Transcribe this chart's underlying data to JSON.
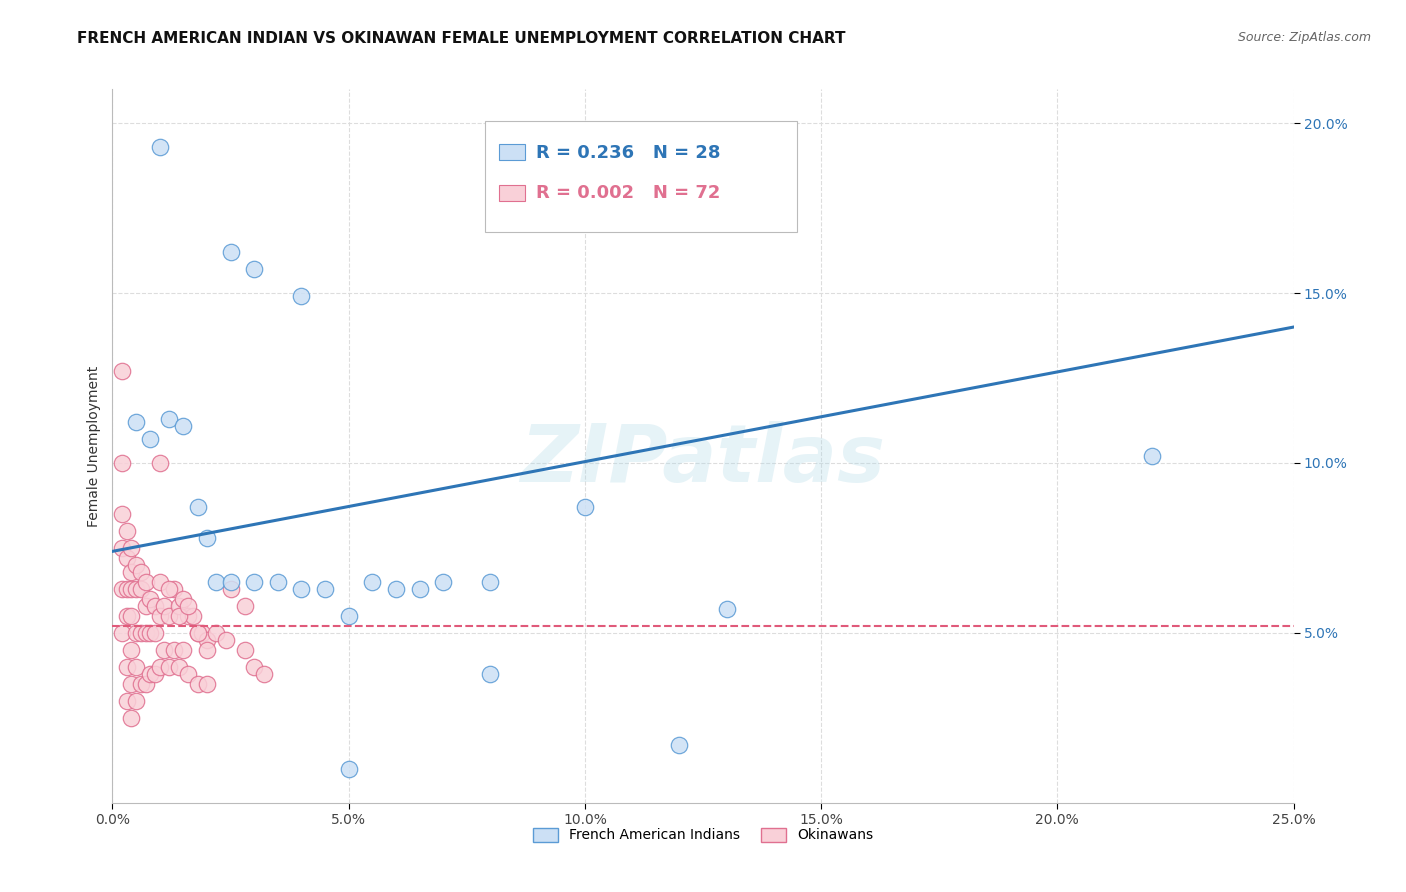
{
  "title": "FRENCH AMERICAN INDIAN VS OKINAWAN FEMALE UNEMPLOYMENT CORRELATION CHART",
  "source": "Source: ZipAtlas.com",
  "ylabel": "Female Unemployment",
  "xlim": [
    0.0,
    0.25
  ],
  "ylim": [
    0.0,
    0.21
  ],
  "xticks": [
    0.0,
    0.05,
    0.1,
    0.15,
    0.2,
    0.25
  ],
  "xtick_labels": [
    "0.0%",
    "5.0%",
    "10.0%",
    "15.0%",
    "20.0%",
    "25.0%"
  ],
  "yticks": [
    0.05,
    0.1,
    0.15,
    0.2
  ],
  "ytick_labels": [
    "5.0%",
    "10.0%",
    "15.0%",
    "20.0%"
  ],
  "watermark": "ZIPatlas",
  "legend_blue_r": "0.236",
  "legend_blue_n": "28",
  "legend_pink_r": "0.002",
  "legend_pink_n": "72",
  "blue_fill": "#cce0f5",
  "blue_edge": "#5b9bd5",
  "pink_fill": "#f9d0d8",
  "pink_edge": "#e07090",
  "blue_line_color": "#2e75b6",
  "pink_line_color": "#e05a7a",
  "blue_scatter_x": [
    0.01,
    0.025,
    0.03,
    0.04,
    0.005,
    0.008,
    0.012,
    0.015,
    0.02,
    0.018,
    0.022,
    0.025,
    0.03,
    0.035,
    0.04,
    0.045,
    0.05,
    0.055,
    0.06,
    0.065,
    0.07,
    0.08,
    0.1,
    0.13,
    0.22,
    0.08,
    0.05,
    0.12
  ],
  "blue_scatter_y": [
    0.193,
    0.162,
    0.157,
    0.149,
    0.112,
    0.107,
    0.113,
    0.111,
    0.078,
    0.087,
    0.065,
    0.065,
    0.065,
    0.065,
    0.063,
    0.063,
    0.055,
    0.065,
    0.063,
    0.063,
    0.065,
    0.065,
    0.087,
    0.057,
    0.102,
    0.038,
    0.01,
    0.017
  ],
  "pink_scatter_x": [
    0.002,
    0.002,
    0.002,
    0.002,
    0.002,
    0.002,
    0.003,
    0.003,
    0.003,
    0.003,
    0.003,
    0.003,
    0.004,
    0.004,
    0.004,
    0.004,
    0.004,
    0.004,
    0.004,
    0.005,
    0.005,
    0.005,
    0.005,
    0.005,
    0.006,
    0.006,
    0.006,
    0.006,
    0.007,
    0.007,
    0.007,
    0.007,
    0.008,
    0.008,
    0.008,
    0.009,
    0.009,
    0.009,
    0.01,
    0.01,
    0.01,
    0.011,
    0.011,
    0.012,
    0.012,
    0.013,
    0.013,
    0.014,
    0.014,
    0.015,
    0.015,
    0.016,
    0.016,
    0.017,
    0.018,
    0.018,
    0.019,
    0.02,
    0.02,
    0.022,
    0.024,
    0.028,
    0.03,
    0.032,
    0.025,
    0.028,
    0.01,
    0.012,
    0.014,
    0.016,
    0.018,
    0.02
  ],
  "pink_scatter_y": [
    0.127,
    0.1,
    0.085,
    0.075,
    0.063,
    0.05,
    0.08,
    0.072,
    0.063,
    0.055,
    0.04,
    0.03,
    0.075,
    0.068,
    0.063,
    0.055,
    0.045,
    0.035,
    0.025,
    0.07,
    0.063,
    0.05,
    0.04,
    0.03,
    0.068,
    0.063,
    0.05,
    0.035,
    0.065,
    0.058,
    0.05,
    0.035,
    0.06,
    0.05,
    0.038,
    0.058,
    0.05,
    0.038,
    0.065,
    0.055,
    0.04,
    0.058,
    0.045,
    0.055,
    0.04,
    0.063,
    0.045,
    0.058,
    0.04,
    0.06,
    0.045,
    0.055,
    0.038,
    0.055,
    0.05,
    0.035,
    0.05,
    0.048,
    0.035,
    0.05,
    0.048,
    0.045,
    0.04,
    0.038,
    0.063,
    0.058,
    0.1,
    0.063,
    0.055,
    0.058,
    0.05,
    0.045
  ],
  "blue_trendline_x": [
    0.0,
    0.25
  ],
  "blue_trendline_y": [
    0.074,
    0.14
  ],
  "pink_trendline_x": [
    0.0,
    0.25
  ],
  "pink_trendline_y": [
    0.052,
    0.052
  ],
  "grid_color": "#dddddd",
  "background_color": "#ffffff",
  "title_fontsize": 11,
  "axis_label_fontsize": 10,
  "tick_fontsize": 10,
  "legend_fontsize": 13,
  "source_fontsize": 9
}
